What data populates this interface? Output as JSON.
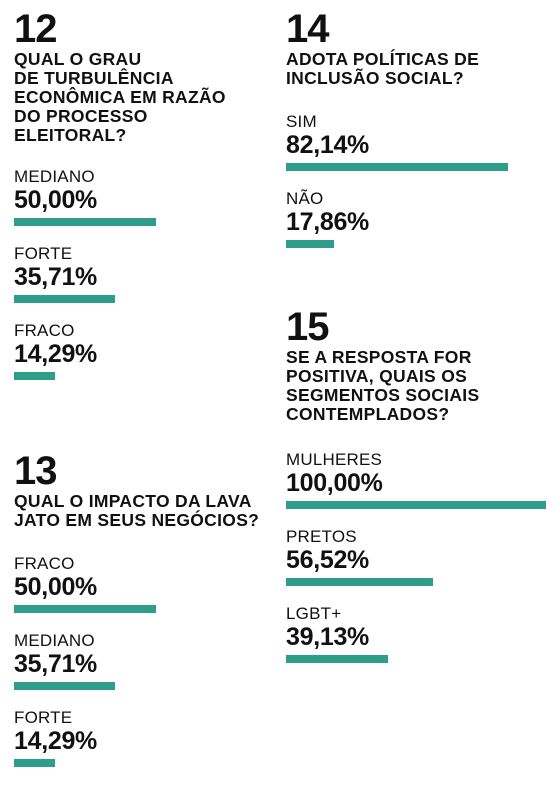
{
  "accent_color": "#2e9e8a",
  "chart_data": [
    {
      "type": "bar",
      "number": "12",
      "title": "QUAL O GRAU\nDE TURBULÊNCIA\nECONÔMICA EM RAZÃO\nDO PROCESSO\nELEITORAL?",
      "categories": [
        "MEDIANO",
        "FORTE",
        "FRACO"
      ],
      "values": [
        50.0,
        35.71,
        14.29
      ],
      "value_labels": [
        "50,00%",
        "35,71%",
        "14,29%"
      ],
      "ylim": [
        0,
        100
      ]
    },
    {
      "type": "bar",
      "number": "13",
      "title": "QUAL O IMPACTO DA LAVA\nJATO EM SEUS NEGÓCIOS?",
      "categories": [
        "FRACO",
        "MEDIANO",
        "FORTE"
      ],
      "values": [
        50.0,
        35.71,
        14.29
      ],
      "value_labels": [
        "50,00%",
        "35,71%",
        "14,29%"
      ],
      "ylim": [
        0,
        100
      ]
    },
    {
      "type": "bar",
      "number": "14",
      "title": "ADOTA POLÍTICAS DE\nINCLUSÃO SOCIAL?",
      "categories": [
        "SIM",
        "NÃO"
      ],
      "values": [
        82.14,
        17.86
      ],
      "value_labels": [
        "82,14%",
        "17,86%"
      ],
      "ylim": [
        0,
        100
      ]
    },
    {
      "type": "bar",
      "number": "15",
      "title": "SE A RESPOSTA FOR\nPOSITIVA, QUAIS OS\nSEGMENTOS SOCIAIS\nCONTEMPLADOS?",
      "categories": [
        "MULHERES",
        "PRETOS",
        "LGBT+"
      ],
      "values": [
        100.0,
        56.52,
        39.13
      ],
      "value_labels": [
        "100,00%",
        "56,52%",
        "39,13%"
      ],
      "ylim": [
        0,
        100
      ]
    }
  ]
}
